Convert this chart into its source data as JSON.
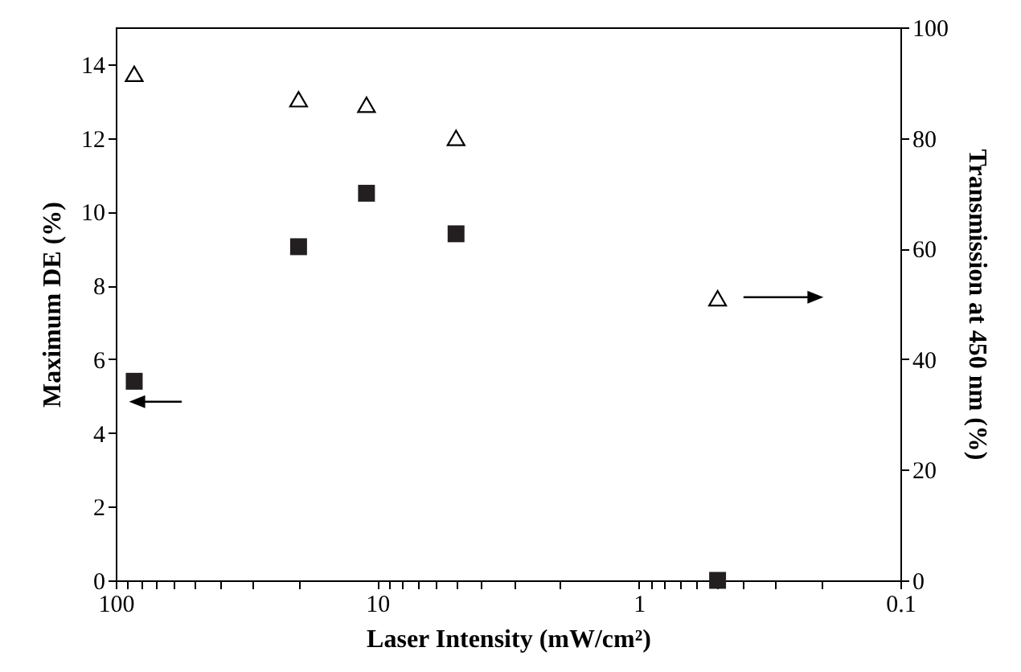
{
  "chart_data": {
    "type": "scatter",
    "xlabel": "Laser Intensity (mW/cm²)",
    "ylabel": "Maximum DE (%)",
    "y2label": "Transmission at 450 nm (%)",
    "log": "x",
    "xlim": [
      100,
      0.1
    ],
    "xticks": [
      100,
      {
        "value": 90,
        "label": null
      },
      {
        "value": 80,
        "label": null
      },
      {
        "value": 70,
        "label": null
      },
      {
        "value": 60,
        "label": null
      },
      {
        "value": 50,
        "label": null
      },
      {
        "value": 40,
        "label": null
      },
      {
        "value": 30,
        "label": null
      },
      {
        "value": 20,
        "label": null
      },
      10,
      {
        "value": 9,
        "label": null
      },
      {
        "value": 8,
        "label": null
      },
      {
        "value": 7,
        "label": null
      },
      {
        "value": 6,
        "label": null
      },
      {
        "value": 5,
        "label": null
      },
      {
        "value": 4,
        "label": null
      },
      {
        "value": 3,
        "label": null
      },
      {
        "value": 2,
        "label": null
      },
      1,
      {
        "value": 0.9,
        "label": null
      },
      {
        "value": 0.8,
        "label": null
      },
      {
        "value": 0.7,
        "label": null
      },
      {
        "value": 0.6,
        "label": null
      },
      {
        "value": 0.5,
        "label": null
      },
      {
        "value": 0.4,
        "label": null
      },
      {
        "value": 0.3,
        "label": null
      },
      {
        "value": 0.2,
        "label": null
      },
      0.1
    ],
    "ylim": [
      0,
      15
    ],
    "yticks": [
      0,
      2,
      4,
      6,
      8,
      10,
      12,
      14
    ],
    "y2lim": [
      0,
      100
    ],
    "y2ticks": [
      0,
      20,
      40,
      60,
      80,
      100
    ],
    "grid": false,
    "x": [
      85,
      20,
      11,
      5,
      0.5
    ],
    "series": [
      {
        "color": "#231f20",
        "marker": "square",
        "values": [
          5.4,
          9.05,
          10.5,
          9.4,
          0
        ]
      },
      {
        "color": "#000000",
        "marker": "triangle",
        "axis": "y2",
        "values": [
          91.6,
          87,
          86,
          80,
          51
        ]
      }
    ]
  }
}
